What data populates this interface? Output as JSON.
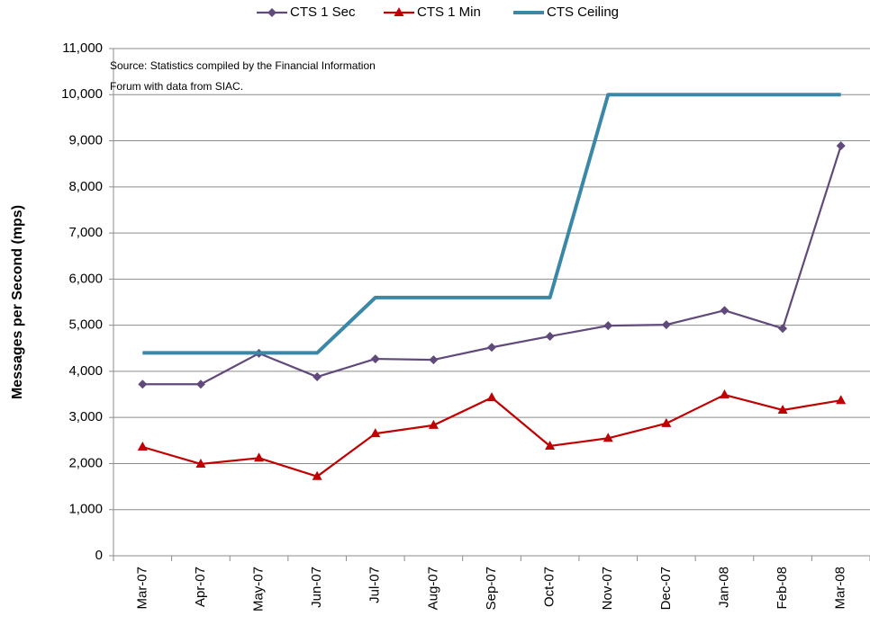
{
  "chart_data": {
    "type": "line",
    "y_label": "Messages per Second (mps)",
    "annotation": [
      "Source: Statistics compiled by the Financial Information",
      "Forum with data from SIAC."
    ],
    "categories": [
      "Mar-07",
      "Apr-07",
      "May-07",
      "Jun-07",
      "Jul-07",
      "Aug-07",
      "Sep-07",
      "Oct-07",
      "Nov-07",
      "Dec-07",
      "Jan-08",
      "Feb-08",
      "Mar-08"
    ],
    "series": [
      {
        "name": "CTS 1 Sec",
        "color": "#604a7b",
        "marker": "diamond",
        "values": [
          3720,
          3720,
          4390,
          3880,
          4270,
          4250,
          4520,
          4760,
          4990,
          5010,
          5320,
          4930,
          8890
        ]
      },
      {
        "name": "CTS 1 Min",
        "color": "#c00000",
        "marker": "triangle",
        "values": [
          2360,
          1990,
          2120,
          1720,
          2650,
          2830,
          3430,
          2380,
          2550,
          2870,
          3490,
          3160,
          3370
        ]
      },
      {
        "name": "CTS Ceiling",
        "color": "#3a87a8",
        "marker": "none",
        "values": [
          4400,
          4400,
          4400,
          4400,
          5600,
          5600,
          5600,
          5600,
          10000,
          10000,
          10000,
          10000,
          10000
        ]
      }
    ],
    "ylim": [
      0,
      11000
    ],
    "yticks": [
      0,
      {
        "value": 1000,
        "label": "1,000"
      },
      {
        "value": 2000,
        "label": "2,000"
      },
      {
        "value": 3000,
        "label": "3,000"
      },
      {
        "value": 4000,
        "label": "4,000"
      },
      {
        "value": 5000,
        "label": "5,000"
      },
      {
        "value": 6000,
        "label": "6,000"
      },
      {
        "value": 7000,
        "label": "7,000"
      },
      {
        "value": 8000,
        "label": "8,000"
      },
      {
        "value": 9000,
        "label": "9,000"
      },
      {
        "value": 10000,
        "label": "10,000"
      },
      {
        "value": 11000,
        "label": "11,000"
      }
    ],
    "grid": true,
    "legend": "top"
  }
}
